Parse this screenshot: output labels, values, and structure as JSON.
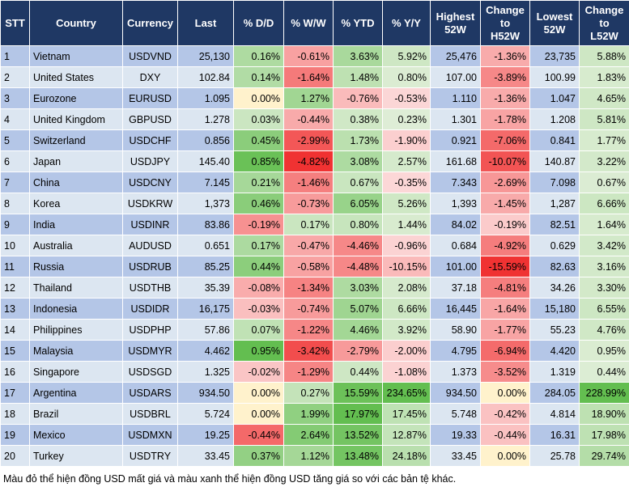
{
  "table": {
    "header": [
      "STT",
      "Country",
      "Currency",
      "Last",
      "% D/D",
      "% W/W",
      "% YTD",
      "% Y/Y",
      "Highest\n52W",
      "Change\nto\nH52W",
      "Lowest\n52W",
      "Change\nto\nL52W"
    ],
    "rows": [
      [
        "1",
        "Vietnam",
        "USDVND",
        "25,130",
        "0.16%",
        "-0.61%",
        "3.63%",
        "5.92%",
        "25,476",
        "-1.36%",
        "23,735",
        "5.88%"
      ],
      [
        "2",
        "United States",
        "DXY",
        "102.84",
        "0.14%",
        "-1.64%",
        "1.48%",
        "0.80%",
        "107.00",
        "-3.89%",
        "100.99",
        "1.83%"
      ],
      [
        "3",
        "Eurozone",
        "EURUSD",
        "1.095",
        "0.00%",
        "1.27%",
        "-0.76%",
        "-0.53%",
        "1.110",
        "-1.36%",
        "1.047",
        "4.65%"
      ],
      [
        "4",
        "United Kingdom",
        "GBPUSD",
        "1.278",
        "0.03%",
        "-0.44%",
        "0.38%",
        "0.23%",
        "1.301",
        "-1.78%",
        "1.208",
        "5.81%"
      ],
      [
        "5",
        "Switzerland",
        "USDCHF",
        "0.856",
        "0.45%",
        "-2.99%",
        "1.73%",
        "-1.90%",
        "0.921",
        "-7.06%",
        "0.841",
        "1.77%"
      ],
      [
        "6",
        "Japan",
        "USDJPY",
        "145.40",
        "0.85%",
        "-4.82%",
        "3.08%",
        "2.57%",
        "161.68",
        "-10.07%",
        "140.87",
        "3.22%"
      ],
      [
        "7",
        "China",
        "USDCNY",
        "7.145",
        "0.21%",
        "-1.46%",
        "0.67%",
        "-0.35%",
        "7.343",
        "-2.69%",
        "7.098",
        "0.67%"
      ],
      [
        "8",
        "Korea",
        "USDKRW",
        "1,373",
        "0.46%",
        "-0.73%",
        "6.05%",
        "5.26%",
        "1,393",
        "-1.45%",
        "1,287",
        "6.66%"
      ],
      [
        "9",
        "India",
        "USDINR",
        "83.86",
        "-0.19%",
        "0.17%",
        "0.80%",
        "1.44%",
        "84.02",
        "-0.19%",
        "82.51",
        "1.64%"
      ],
      [
        "10",
        "Australia",
        "AUDUSD",
        "0.651",
        "0.17%",
        "-0.47%",
        "-4.46%",
        "-0.96%",
        "0.684",
        "-4.92%",
        "0.629",
        "3.42%"
      ],
      [
        "11",
        "Russia",
        "USDRUB",
        "85.25",
        "0.44%",
        "-0.58%",
        "-4.48%",
        "-10.15%",
        "101.00",
        "-15.59%",
        "82.63",
        "3.16%"
      ],
      [
        "12",
        "Thailand",
        "USDTHB",
        "35.39",
        "-0.08%",
        "-1.34%",
        "3.03%",
        "2.08%",
        "37.18",
        "-4.81%",
        "34.26",
        "3.30%"
      ],
      [
        "13",
        "Indonesia",
        "USDIDR",
        "16,175",
        "-0.03%",
        "-0.74%",
        "5.07%",
        "6.66%",
        "16,445",
        "-1.64%",
        "15,180",
        "6.55%"
      ],
      [
        "14",
        "Philippines",
        "USDPHP",
        "57.86",
        "0.07%",
        "-1.22%",
        "4.46%",
        "3.92%",
        "58.90",
        "-1.77%",
        "55.23",
        "4.76%"
      ],
      [
        "15",
        "Malaysia",
        "USDMYR",
        "4.462",
        "0.95%",
        "-3.42%",
        "-2.79%",
        "-2.00%",
        "4.795",
        "-6.94%",
        "4.420",
        "0.95%"
      ],
      [
        "16",
        "Singapore",
        "USDSGD",
        "1.325",
        "-0.02%",
        "-1.29%",
        "0.44%",
        "-1.08%",
        "1.373",
        "-3.52%",
        "1.319",
        "0.44%"
      ],
      [
        "17",
        "Argentina",
        "USDARS",
        "934.50",
        "0.00%",
        "0.27%",
        "15.59%",
        "234.65%",
        "934.50",
        "0.00%",
        "284.05",
        "228.99%"
      ],
      [
        "18",
        "Brazil",
        "USDBRL",
        "5.724",
        "0.00%",
        "1.99%",
        "17.97%",
        "17.45%",
        "5.748",
        "-0.42%",
        "4.814",
        "18.90%"
      ],
      [
        "19",
        "Mexico",
        "USDMXN",
        "19.25",
        "-0.44%",
        "2.64%",
        "13.52%",
        "12.87%",
        "19.33",
        "-0.44%",
        "16.31",
        "17.98%"
      ],
      [
        "20",
        "Turkey",
        "USDTRY",
        "33.45",
        "0.37%",
        "1.12%",
        "13.48%",
        "24.18%",
        "33.45",
        "0.00%",
        "25.78",
        "29.74%"
      ]
    ]
  },
  "footer": "Màu đỏ thể hiện đồng USD mất giá và màu xanh thể hiện đồng USD tăng giá so với các bản tệ khác."
}
